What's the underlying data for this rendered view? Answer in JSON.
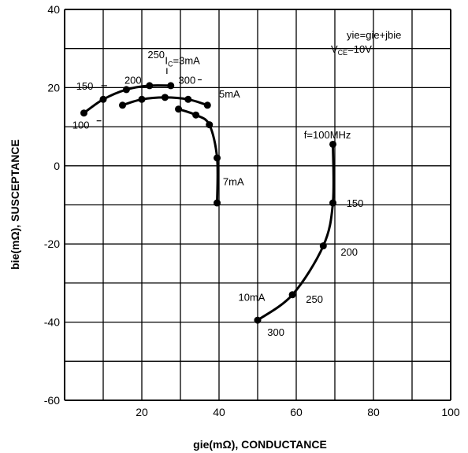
{
  "chart_data": {
    "type": "line",
    "xlabel": "gie(mΩ), CONDUCTANCE",
    "ylabel": "bie(mΩ), SUSCEPTANCE",
    "xlim": [
      0,
      100
    ],
    "ylim": [
      -60,
      40
    ],
    "xticks": [
      20,
      40,
      60,
      80,
      100
    ],
    "yticks": [
      40,
      20,
      0,
      -20,
      -40,
      -60
    ],
    "grid": true,
    "legend": {
      "lines": [
        "yie=gie+jbie",
        "VCE=10V"
      ]
    },
    "series": [
      {
        "name": "IC=3mA",
        "points": [
          [
            5,
            13.5
          ],
          [
            10,
            17
          ],
          [
            16,
            19.5
          ],
          [
            22,
            20.5
          ],
          [
            27.5,
            20.5
          ]
        ]
      },
      {
        "name": "5mA",
        "points": [
          [
            15,
            15.5
          ],
          [
            20,
            17
          ],
          [
            26,
            17.5
          ],
          [
            32,
            17
          ],
          [
            37,
            15.5
          ]
        ]
      },
      {
        "name": "7mA",
        "points": [
          [
            29.5,
            14.5
          ],
          [
            34,
            13
          ],
          [
            37.5,
            10.5
          ],
          [
            39.5,
            2
          ],
          [
            39.5,
            -9.5
          ]
        ]
      },
      {
        "name": "10mA",
        "points": [
          [
            69.5,
            5.5
          ],
          [
            69.5,
            -9.5
          ],
          [
            67,
            -20.5
          ],
          [
            59,
            -33
          ],
          [
            50,
            -39.5
          ]
        ]
      }
    ],
    "point_labels": [
      {
        "text": "100",
        "x": 2,
        "y": 10.5
      },
      {
        "text": "150",
        "x": 3,
        "y": 20.5
      },
      {
        "text": "200",
        "x": 15.5,
        "y": 22
      },
      {
        "text": "250",
        "x": 21.5,
        "y": 28.5
      },
      {
        "text": "300",
        "x": 29.5,
        "y": 22
      },
      {
        "text": "f=100MHz",
        "x": 62,
        "y": 8
      },
      {
        "text": "150",
        "x": 73,
        "y": -9.5
      },
      {
        "text": "200",
        "x": 71.5,
        "y": -22
      },
      {
        "text": "250",
        "x": 62.5,
        "y": -34
      },
      {
        "text": "300",
        "x": 52.5,
        "y": -42.5
      }
    ],
    "annotations": [
      {
        "text": "IC=3mA",
        "sub": "C",
        "x": 26,
        "y": 27
      },
      {
        "text": "5mA",
        "x": 40,
        "y": 18.5
      },
      {
        "text": "7mA",
        "x": 41,
        "y": -4
      },
      {
        "text": "10mA",
        "x": 45,
        "y": -33.5
      }
    ]
  }
}
